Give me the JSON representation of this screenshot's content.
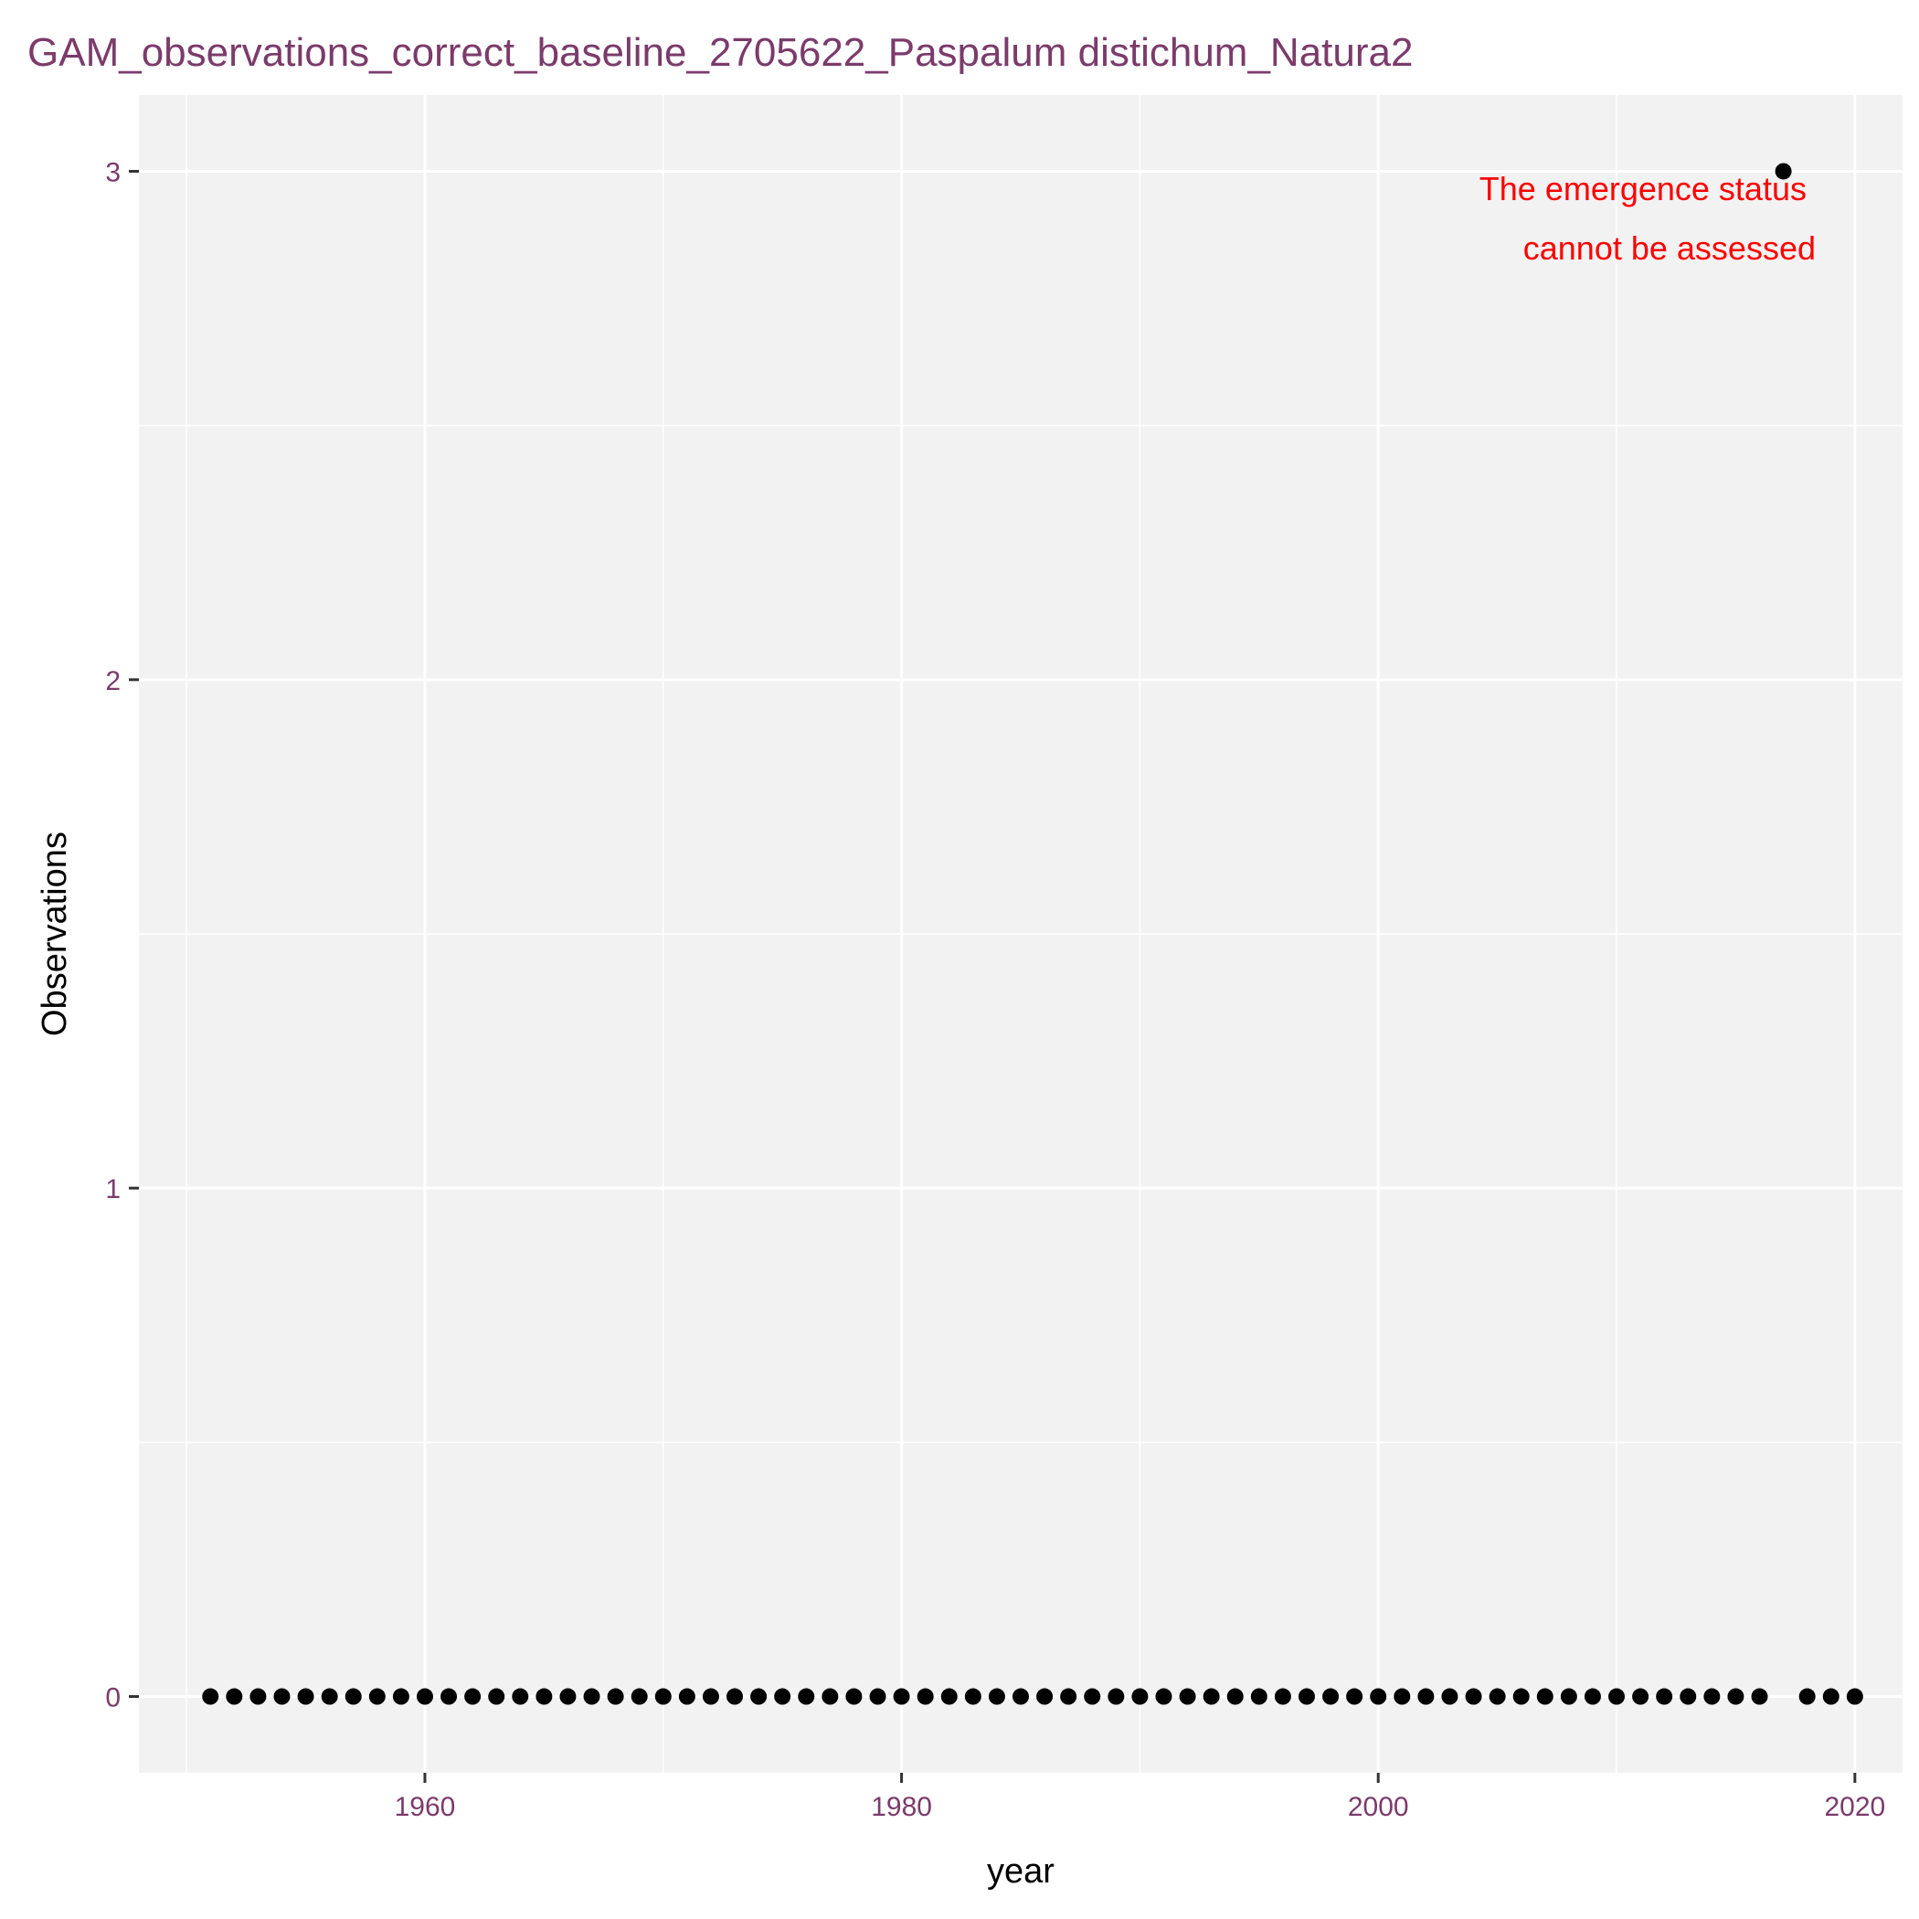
{
  "chart_data": {
    "type": "scatter",
    "title": "GAM_observations_correct_baseline_2705622_Paspalum distichum_Natura2",
    "xlabel": "year",
    "ylabel": "Observations",
    "xlim": [
      1948,
      2022
    ],
    "ylim": [
      -0.15,
      3.15
    ],
    "xticks": [
      1960,
      1980,
      2000,
      2020
    ],
    "xtick_labels": [
      "1960",
      "1980",
      "2000",
      "2020"
    ],
    "yticks": [
      0,
      1,
      2,
      3
    ],
    "ytick_labels": [
      "0",
      "1",
      "2",
      "3"
    ],
    "grid": true,
    "legend": "none",
    "point_color": "#000000",
    "panel_color": "#f2f2f2",
    "title_color": "#7b3b6b",
    "annotation": {
      "lines": [
        "The emergence status",
        "cannot be assessed"
      ],
      "color": "#ff0000"
    },
    "points": [
      {
        "x": 1951,
        "y": 0
      },
      {
        "x": 1952,
        "y": 0
      },
      {
        "x": 1953,
        "y": 0
      },
      {
        "x": 1954,
        "y": 0
      },
      {
        "x": 1955,
        "y": 0
      },
      {
        "x": 1956,
        "y": 0
      },
      {
        "x": 1957,
        "y": 0
      },
      {
        "x": 1958,
        "y": 0
      },
      {
        "x": 1959,
        "y": 0
      },
      {
        "x": 1960,
        "y": 0
      },
      {
        "x": 1961,
        "y": 0
      },
      {
        "x": 1962,
        "y": 0
      },
      {
        "x": 1963,
        "y": 0
      },
      {
        "x": 1964,
        "y": 0
      },
      {
        "x": 1965,
        "y": 0
      },
      {
        "x": 1966,
        "y": 0
      },
      {
        "x": 1967,
        "y": 0
      },
      {
        "x": 1968,
        "y": 0
      },
      {
        "x": 1969,
        "y": 0
      },
      {
        "x": 1970,
        "y": 0
      },
      {
        "x": 1971,
        "y": 0
      },
      {
        "x": 1972,
        "y": 0
      },
      {
        "x": 1973,
        "y": 0
      },
      {
        "x": 1974,
        "y": 0
      },
      {
        "x": 1975,
        "y": 0
      },
      {
        "x": 1976,
        "y": 0
      },
      {
        "x": 1977,
        "y": 0
      },
      {
        "x": 1978,
        "y": 0
      },
      {
        "x": 1979,
        "y": 0
      },
      {
        "x": 1980,
        "y": 0
      },
      {
        "x": 1981,
        "y": 0
      },
      {
        "x": 1982,
        "y": 0
      },
      {
        "x": 1983,
        "y": 0
      },
      {
        "x": 1984,
        "y": 0
      },
      {
        "x": 1985,
        "y": 0
      },
      {
        "x": 1986,
        "y": 0
      },
      {
        "x": 1987,
        "y": 0
      },
      {
        "x": 1988,
        "y": 0
      },
      {
        "x": 1989,
        "y": 0
      },
      {
        "x": 1990,
        "y": 0
      },
      {
        "x": 1991,
        "y": 0
      },
      {
        "x": 1992,
        "y": 0
      },
      {
        "x": 1993,
        "y": 0
      },
      {
        "x": 1994,
        "y": 0
      },
      {
        "x": 1995,
        "y": 0
      },
      {
        "x": 1996,
        "y": 0
      },
      {
        "x": 1997,
        "y": 0
      },
      {
        "x": 1998,
        "y": 0
      },
      {
        "x": 1999,
        "y": 0
      },
      {
        "x": 2000,
        "y": 0
      },
      {
        "x": 2001,
        "y": 0
      },
      {
        "x": 2002,
        "y": 0
      },
      {
        "x": 2003,
        "y": 0
      },
      {
        "x": 2004,
        "y": 0
      },
      {
        "x": 2005,
        "y": 0
      },
      {
        "x": 2006,
        "y": 0
      },
      {
        "x": 2007,
        "y": 0
      },
      {
        "x": 2008,
        "y": 0
      },
      {
        "x": 2009,
        "y": 0
      },
      {
        "x": 2010,
        "y": 0
      },
      {
        "x": 2011,
        "y": 0
      },
      {
        "x": 2012,
        "y": 0
      },
      {
        "x": 2013,
        "y": 0
      },
      {
        "x": 2014,
        "y": 0
      },
      {
        "x": 2015,
        "y": 0
      },
      {
        "x": 2016,
        "y": 0
      },
      {
        "x": 2017,
        "y": 3
      },
      {
        "x": 2018,
        "y": 0
      },
      {
        "x": 2019,
        "y": 0
      },
      {
        "x": 2020,
        "y": 0
      }
    ]
  }
}
